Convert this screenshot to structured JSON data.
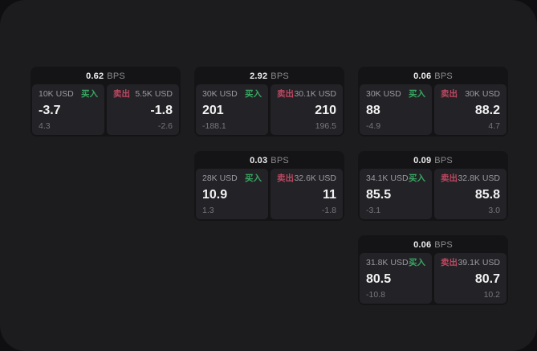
{
  "labels": {
    "bps": "BPS",
    "buy": "买入",
    "sell": "卖出"
  },
  "colors": {
    "buy": "#3aa662",
    "sell": "#bf4760",
    "container": "#1c1c1e",
    "card": "#141416",
    "tile": "#232327"
  },
  "cards": [
    {
      "bps": "0.62",
      "row": 1,
      "col": 1,
      "buy": {
        "amount": "10K USD",
        "value": "-3.7",
        "delta": "4.3"
      },
      "sell": {
        "amount": "5.5K USD",
        "value": "-1.8",
        "delta": "-2.6"
      }
    },
    {
      "bps": "2.92",
      "row": 1,
      "col": 2,
      "buy": {
        "amount": "30K USD",
        "value": "201",
        "delta": "-188.1"
      },
      "sell": {
        "amount": "30.1K USD",
        "value": "210",
        "delta": "196.5"
      }
    },
    {
      "bps": "0.06",
      "row": 1,
      "col": 3,
      "buy": {
        "amount": "30K USD",
        "value": "88",
        "delta": "-4.9"
      },
      "sell": {
        "amount": "30K USD",
        "value": "88.2",
        "delta": "4.7"
      }
    },
    {
      "bps": "0.03",
      "row": 2,
      "col": 2,
      "buy": {
        "amount": "28K USD",
        "value": "10.9",
        "delta": "1.3"
      },
      "sell": {
        "amount": "32.6K USD",
        "value": "11",
        "delta": "-1.8"
      }
    },
    {
      "bps": "0.09",
      "row": 2,
      "col": 3,
      "buy": {
        "amount": "34.1K USD",
        "value": "85.5",
        "delta": "-3.1"
      },
      "sell": {
        "amount": "32.8K USD",
        "value": "85.8",
        "delta": "3.0"
      }
    },
    {
      "bps": "0.06",
      "row": 3,
      "col": 3,
      "buy": {
        "amount": "31.8K USD",
        "value": "80.5",
        "delta": "-10.8"
      },
      "sell": {
        "amount": "39.1K USD",
        "value": "80.7",
        "delta": "10.2"
      }
    }
  ]
}
